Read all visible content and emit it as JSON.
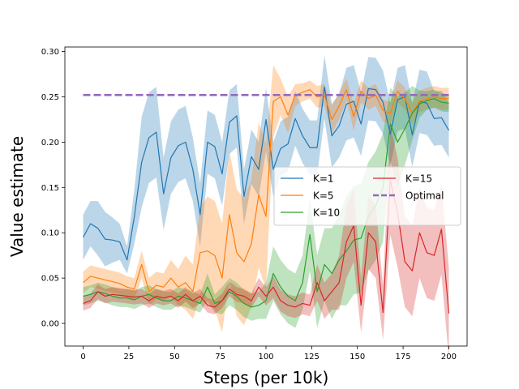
{
  "chart_data": {
    "type": "line",
    "title": "",
    "xlabel": "Steps (per 10k)",
    "ylabel": "Value estimate",
    "xlim": [
      -10,
      210
    ],
    "ylim": [
      -0.025,
      0.305
    ],
    "xticks": [
      0,
      25,
      50,
      75,
      100,
      125,
      150,
      175,
      200
    ],
    "yticks": [
      0.0,
      0.05,
      0.1,
      0.15,
      0.2,
      0.25,
      0.3
    ],
    "grid": false,
    "legend": {
      "position": "center-right",
      "columns": 2
    },
    "x": [
      0,
      4,
      8,
      12,
      16,
      20,
      24,
      28,
      32,
      36,
      40,
      44,
      48,
      52,
      56,
      60,
      64,
      68,
      72,
      76,
      80,
      84,
      88,
      92,
      96,
      100,
      104,
      108,
      112,
      116,
      120,
      124,
      128,
      132,
      136,
      140,
      144,
      148,
      152,
      156,
      160,
      164,
      168,
      172,
      176,
      180,
      184,
      188,
      192,
      196,
      200
    ],
    "series": [
      {
        "name": "K=1",
        "color": "#1f77b4",
        "values": [
          0.095,
          0.11,
          0.105,
          0.093,
          0.092,
          0.09,
          0.07,
          0.118,
          0.178,
          0.205,
          0.211,
          0.143,
          0.183,
          0.196,
          0.2,
          0.17,
          0.12,
          0.2,
          0.195,
          0.165,
          0.222,
          0.229,
          0.14,
          0.184,
          0.17,
          0.225,
          0.17,
          0.193,
          0.198,
          0.226,
          0.207,
          0.194,
          0.194,
          0.261,
          0.207,
          0.218,
          0.242,
          0.245,
          0.22,
          0.259,
          0.258,
          0.244,
          0.209,
          0.247,
          0.25,
          0.208,
          0.245,
          0.243,
          0.226,
          0.227,
          0.213
        ],
        "band": [
          0.025,
          0.025,
          0.03,
          0.03,
          0.025,
          0.02,
          0.015,
          0.03,
          0.05,
          0.05,
          0.05,
          0.04,
          0.04,
          0.04,
          0.04,
          0.035,
          0.035,
          0.035,
          0.035,
          0.035,
          0.035,
          0.035,
          0.03,
          0.03,
          0.03,
          0.035,
          0.03,
          0.03,
          0.03,
          0.03,
          0.03,
          0.03,
          0.03,
          0.035,
          0.035,
          0.035,
          0.04,
          0.04,
          0.035,
          0.035,
          0.035,
          0.035,
          0.035,
          0.035,
          0.035,
          0.035,
          0.035,
          0.035,
          0.03,
          0.03,
          0.03
        ]
      },
      {
        "name": "K=5",
        "color": "#ff7f0e",
        "values": [
          0.045,
          0.052,
          0.05,
          0.048,
          0.046,
          0.044,
          0.04,
          0.038,
          0.065,
          0.035,
          0.042,
          0.04,
          0.05,
          0.04,
          0.045,
          0.035,
          0.078,
          0.08,
          0.075,
          0.05,
          0.12,
          0.078,
          0.068,
          0.088,
          0.142,
          0.118,
          0.245,
          0.25,
          0.23,
          0.252,
          0.255,
          0.258,
          0.25,
          0.252,
          0.225,
          0.24,
          0.258,
          0.228,
          0.256,
          0.248,
          0.252,
          0.235,
          0.232,
          0.256,
          0.248,
          0.232,
          0.245,
          0.248,
          0.25,
          0.248,
          0.248
        ],
        "band": [
          0.012,
          0.012,
          0.012,
          0.012,
          0.012,
          0.012,
          0.012,
          0.012,
          0.015,
          0.015,
          0.015,
          0.015,
          0.02,
          0.02,
          0.03,
          0.03,
          0.05,
          0.06,
          0.06,
          0.06,
          0.07,
          0.07,
          0.07,
          0.07,
          0.08,
          0.08,
          0.04,
          0.02,
          0.02,
          0.012,
          0.01,
          0.01,
          0.012,
          0.012,
          0.015,
          0.015,
          0.012,
          0.015,
          0.012,
          0.012,
          0.012,
          0.012,
          0.012,
          0.012,
          0.012,
          0.012,
          0.012,
          0.012,
          0.012,
          0.012,
          0.012
        ]
      },
      {
        "name": "K=10",
        "color": "#2ca02c",
        "values": [
          0.03,
          0.032,
          0.035,
          0.033,
          0.03,
          0.028,
          0.028,
          0.026,
          0.03,
          0.032,
          0.028,
          0.025,
          0.025,
          0.03,
          0.028,
          0.025,
          0.022,
          0.04,
          0.022,
          0.025,
          0.035,
          0.03,
          0.022,
          0.018,
          0.02,
          0.025,
          0.055,
          0.04,
          0.03,
          0.025,
          0.045,
          0.098,
          0.035,
          0.065,
          0.055,
          0.07,
          0.08,
          0.092,
          0.094,
          0.118,
          0.13,
          0.15,
          0.22,
          0.2,
          0.215,
          0.232,
          0.242,
          0.246,
          0.248,
          0.244,
          0.243
        ],
        "band": [
          0.01,
          0.01,
          0.01,
          0.01,
          0.01,
          0.01,
          0.01,
          0.01,
          0.01,
          0.01,
          0.01,
          0.01,
          0.01,
          0.01,
          0.01,
          0.01,
          0.01,
          0.015,
          0.01,
          0.015,
          0.015,
          0.015,
          0.015,
          0.015,
          0.015,
          0.02,
          0.03,
          0.03,
          0.03,
          0.03,
          0.03,
          0.04,
          0.04,
          0.04,
          0.05,
          0.05,
          0.06,
          0.06,
          0.06,
          0.06,
          0.06,
          0.06,
          0.04,
          0.05,
          0.04,
          0.03,
          0.015,
          0.01,
          0.01,
          0.01,
          0.01
        ]
      },
      {
        "name": "K=15",
        "color": "#d62728",
        "values": [
          0.022,
          0.025,
          0.035,
          0.03,
          0.032,
          0.031,
          0.03,
          0.029,
          0.03,
          0.025,
          0.03,
          0.028,
          0.03,
          0.025,
          0.032,
          0.025,
          0.03,
          0.02,
          0.018,
          0.025,
          0.038,
          0.032,
          0.03,
          0.025,
          0.04,
          0.03,
          0.04,
          0.025,
          0.02,
          0.018,
          0.022,
          0.02,
          0.045,
          0.025,
          0.035,
          0.045,
          0.09,
          0.108,
          0.02,
          0.1,
          0.09,
          0.012,
          0.158,
          0.122,
          0.068,
          0.058,
          0.1,
          0.078,
          0.075,
          0.104,
          0.011
        ],
        "band": [
          0.008,
          0.008,
          0.008,
          0.008,
          0.008,
          0.008,
          0.008,
          0.008,
          0.008,
          0.008,
          0.008,
          0.008,
          0.008,
          0.008,
          0.008,
          0.008,
          0.008,
          0.008,
          0.008,
          0.008,
          0.008,
          0.008,
          0.008,
          0.008,
          0.01,
          0.01,
          0.012,
          0.012,
          0.012,
          0.012,
          0.012,
          0.012,
          0.02,
          0.02,
          0.02,
          0.03,
          0.04,
          0.04,
          0.03,
          0.04,
          0.04,
          0.03,
          0.06,
          0.06,
          0.05,
          0.05,
          0.05,
          0.05,
          0.05,
          0.05,
          0.05
        ]
      },
      {
        "name": "Optimal",
        "color": "#9467bd",
        "style": "dashed",
        "x": [
          0,
          200
        ],
        "values": [
          0.252,
          0.252
        ]
      }
    ]
  }
}
